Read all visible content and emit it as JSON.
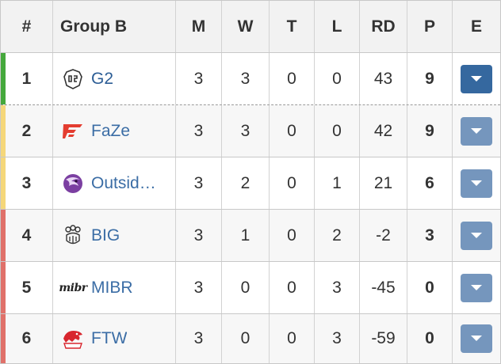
{
  "headers": {
    "rank": "#",
    "group": "Group B",
    "matches": "M",
    "wins": "W",
    "ties": "T",
    "losses": "L",
    "round_diff": "RD",
    "points": "P",
    "expand": "E"
  },
  "accent_colors": {
    "green": "#45a83c",
    "yellow": "#f5d77a",
    "red": "#e0716a"
  },
  "rows": [
    {
      "rank": "1",
      "team": "G2",
      "logo": "g2-logo-icon",
      "m": "3",
      "w": "3",
      "t": "0",
      "l": "0",
      "rd": "43",
      "p": "9",
      "accent": "green"
    },
    {
      "rank": "2",
      "team": "FaZe",
      "logo": "faze-logo-icon",
      "m": "3",
      "w": "3",
      "t": "0",
      "l": "0",
      "rd": "42",
      "p": "9",
      "accent": "yellow"
    },
    {
      "rank": "3",
      "team": "Outsid…",
      "logo": "outsiders-logo-icon",
      "m": "3",
      "w": "2",
      "t": "0",
      "l": "1",
      "rd": "21",
      "p": "6",
      "accent": "yellow"
    },
    {
      "rank": "4",
      "team": "BIG",
      "logo": "big-logo-icon",
      "m": "3",
      "w": "1",
      "t": "0",
      "l": "2",
      "rd": "-2",
      "p": "3",
      "accent": "red"
    },
    {
      "rank": "5",
      "team": "MIBR",
      "logo": "mibr-logo-icon",
      "m": "3",
      "w": "0",
      "t": "0",
      "l": "3",
      "rd": "-45",
      "p": "0",
      "accent": "red"
    },
    {
      "rank": "6",
      "team": "FTW",
      "logo": "ftw-logo-icon",
      "m": "3",
      "w": "0",
      "t": "0",
      "l": "3",
      "rd": "-59",
      "p": "0",
      "accent": "red"
    }
  ],
  "logo_text": {
    "mibr": "mibr"
  }
}
